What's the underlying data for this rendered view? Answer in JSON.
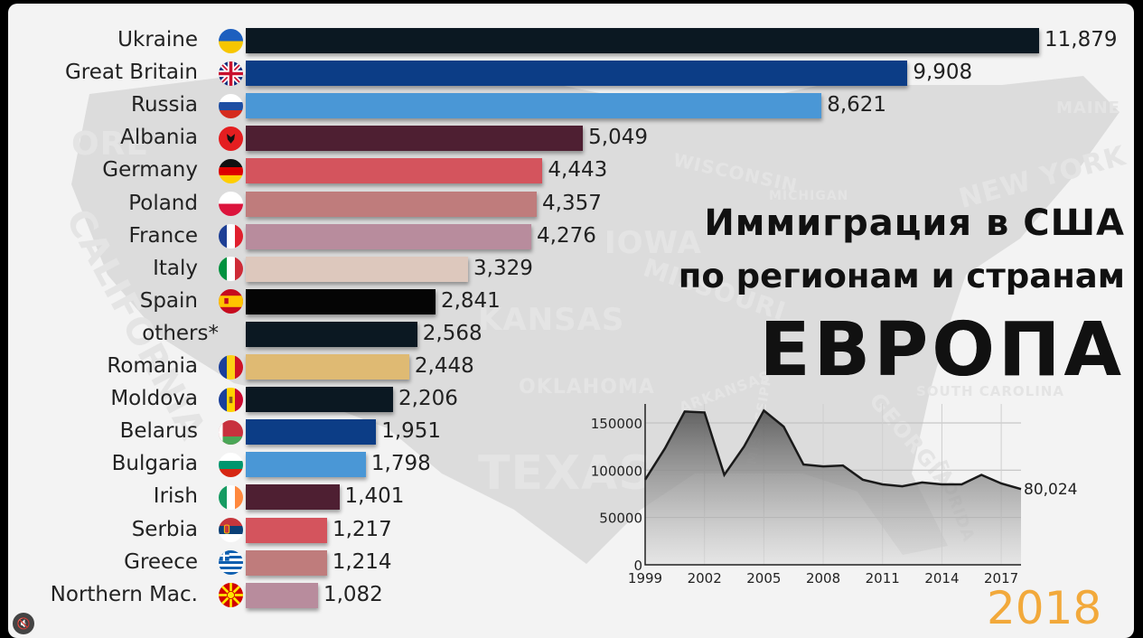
{
  "chart_data": [
    {
      "type": "bar",
      "orientation": "horizontal",
      "categories": [
        "Ukraine",
        "Great Britain",
        "Russia",
        "Albania",
        "Germany",
        "Poland",
        "France",
        "Italy",
        "Spain",
        "others*",
        "Romania",
        "Moldova",
        "Belarus",
        "Bulgaria",
        "Irish",
        "Serbia",
        "Greece",
        "Northern Mac."
      ],
      "values": [
        11879,
        9908,
        8621,
        5049,
        4443,
        4357,
        4276,
        3329,
        2841,
        2568,
        2448,
        2206,
        1951,
        1798,
        1401,
        1217,
        1214,
        1082
      ],
      "value_labels": [
        "11,879",
        "9,908",
        "8,621",
        "5,049",
        "4,443",
        "4,357",
        "4,276",
        "3,329",
        "2,841",
        "2,568",
        "2,448",
        "2,206",
        "1,951",
        "1,798",
        "1,401",
        "1,217",
        "1,214",
        "1,082"
      ],
      "bar_colors": [
        "#0b1822",
        "#0c3d86",
        "#4a97d6",
        "#4e1f32",
        "#d4545d",
        "#bf7c7c",
        "#b88c9d",
        "#ddc8bd",
        "#050505",
        "#0b1822",
        "#dfba73",
        "#0b1822",
        "#0c3d86",
        "#4a97d6",
        "#4e1f32",
        "#d4545d",
        "#bf7c7c",
        "#b88c9d"
      ],
      "flag_icons": [
        "ukraine-flag-icon",
        "great-britain-flag-icon",
        "russia-flag-icon",
        "albania-flag-icon",
        "germany-flag-icon",
        "poland-flag-icon",
        "france-flag-icon",
        "italy-flag-icon",
        "spain-flag-icon",
        "",
        "romania-flag-icon",
        "moldova-flag-icon",
        "belarus-flag-icon",
        "bulgaria-flag-icon",
        "ireland-flag-icon",
        "serbia-flag-icon",
        "greece-flag-icon",
        "north-macedonia-flag-icon"
      ],
      "xlim": [
        0,
        11879
      ]
    },
    {
      "type": "area",
      "x": [
        1999,
        2000,
        2001,
        2002,
        2003,
        2004,
        2005,
        2006,
        2007,
        2008,
        2009,
        2010,
        2011,
        2012,
        2013,
        2014,
        2015,
        2016,
        2017,
        2018
      ],
      "values": [
        90000,
        123000,
        162000,
        161000,
        95000,
        125000,
        163000,
        146000,
        106000,
        104000,
        105000,
        90000,
        85000,
        83000,
        87000,
        85000,
        85000,
        95000,
        86000,
        80024
      ],
      "end_label": "80,024",
      "xticks": [
        "1999",
        "2002",
        "2005",
        "2008",
        "2011",
        "2014",
        "2017"
      ],
      "yticks": [
        "0",
        "50000",
        "100000",
        "150000"
      ],
      "ylim": [
        0,
        170000
      ],
      "grid": true
    }
  ],
  "title": {
    "line1": "Иммиграция в США",
    "line2": "по регионам и странам",
    "line3": "ЕВРОПА"
  },
  "year": "2018",
  "map_words": [
    "ORE",
    "CALIFORNIA",
    "IOWA",
    "MISSOURI",
    "KANSAS",
    "OKLAHOMA",
    "TEXAS",
    "ARKANSAS",
    "MISSISSIPPI",
    "WISCONSIN",
    "MICHIGAN",
    "NEW YORK",
    "MAINE",
    "GEORGIA",
    "SOUTH CAROLINA",
    "FLORIDA"
  ],
  "colors": {
    "accent_year": "#f2a93b",
    "background": "#f3f3f3",
    "map": "#dcdcdc"
  },
  "controls": {
    "mute_icon": "speaker-mute-icon"
  }
}
